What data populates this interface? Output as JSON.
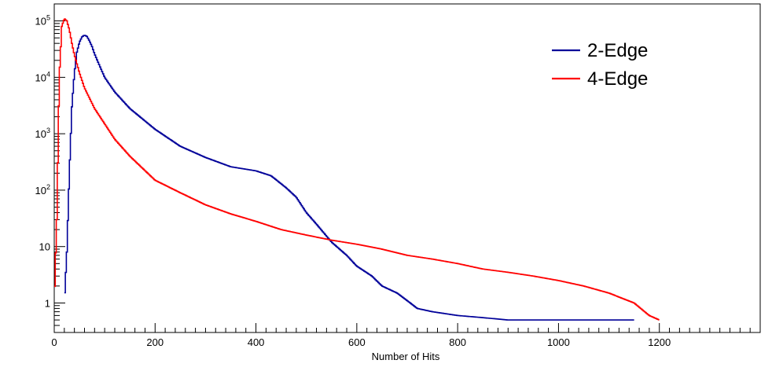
{
  "chart_data": {
    "type": "line",
    "title": "",
    "xlabel": "Number of Hits",
    "ylabel": "",
    "xlim": [
      0,
      1400
    ],
    "ylim": [
      0.3,
      200000
    ],
    "yscale": "log",
    "grid": false,
    "legend_position": "top-right",
    "x_ticks": [
      "0",
      "200",
      "400",
      "600",
      "800",
      "1000",
      "1200"
    ],
    "y_ticks": [
      {
        "base": "1",
        "exp": ""
      },
      {
        "base": "10",
        "exp": ""
      },
      {
        "base": "10",
        "exp": "2"
      },
      {
        "base": "10",
        "exp": "3"
      },
      {
        "base": "10",
        "exp": "4"
      },
      {
        "base": "10",
        "exp": "5"
      }
    ],
    "series": [
      {
        "name": "2-Edge",
        "color": "#000099",
        "x": [
          20,
          25,
          30,
          35,
          40,
          45,
          50,
          55,
          60,
          65,
          70,
          75,
          80,
          90,
          100,
          120,
          150,
          200,
          250,
          300,
          350,
          400,
          430,
          460,
          480,
          500,
          520,
          550,
          580,
          600,
          630,
          650,
          680,
          700,
          720,
          750,
          800,
          850,
          900,
          1000,
          1100,
          1150
        ],
        "y": [
          1,
          8,
          200,
          3000,
          12000,
          28000,
          42000,
          52000,
          56000,
          53000,
          44000,
          35000,
          26000,
          16000,
          10000,
          5500,
          2800,
          1200,
          600,
          380,
          260,
          220,
          180,
          110,
          75,
          40,
          25,
          12,
          7,
          4.5,
          3,
          2,
          1.5,
          1.1,
          0.8,
          0.7,
          0.6,
          0.55,
          0.5,
          0.5,
          0.5,
          0.5
        ]
      },
      {
        "name": "4-Edge",
        "color": "#ff0000",
        "x": [
          0,
          5,
          10,
          15,
          20,
          25,
          30,
          35,
          40,
          50,
          60,
          80,
          100,
          120,
          150,
          200,
          250,
          300,
          350,
          400,
          450,
          500,
          550,
          600,
          650,
          700,
          750,
          800,
          850,
          900,
          950,
          1000,
          1050,
          1100,
          1150,
          1180,
          1200
        ],
        "y": [
          1,
          30,
          10000,
          80000,
          110000,
          100000,
          70000,
          40000,
          25000,
          12000,
          6500,
          2800,
          1500,
          800,
          400,
          150,
          90,
          55,
          38,
          28,
          20,
          16,
          13,
          11,
          9,
          7,
          6,
          5,
          4,
          3.5,
          3,
          2.5,
          2,
          1.5,
          1,
          0.6,
          0.5
        ]
      }
    ]
  }
}
